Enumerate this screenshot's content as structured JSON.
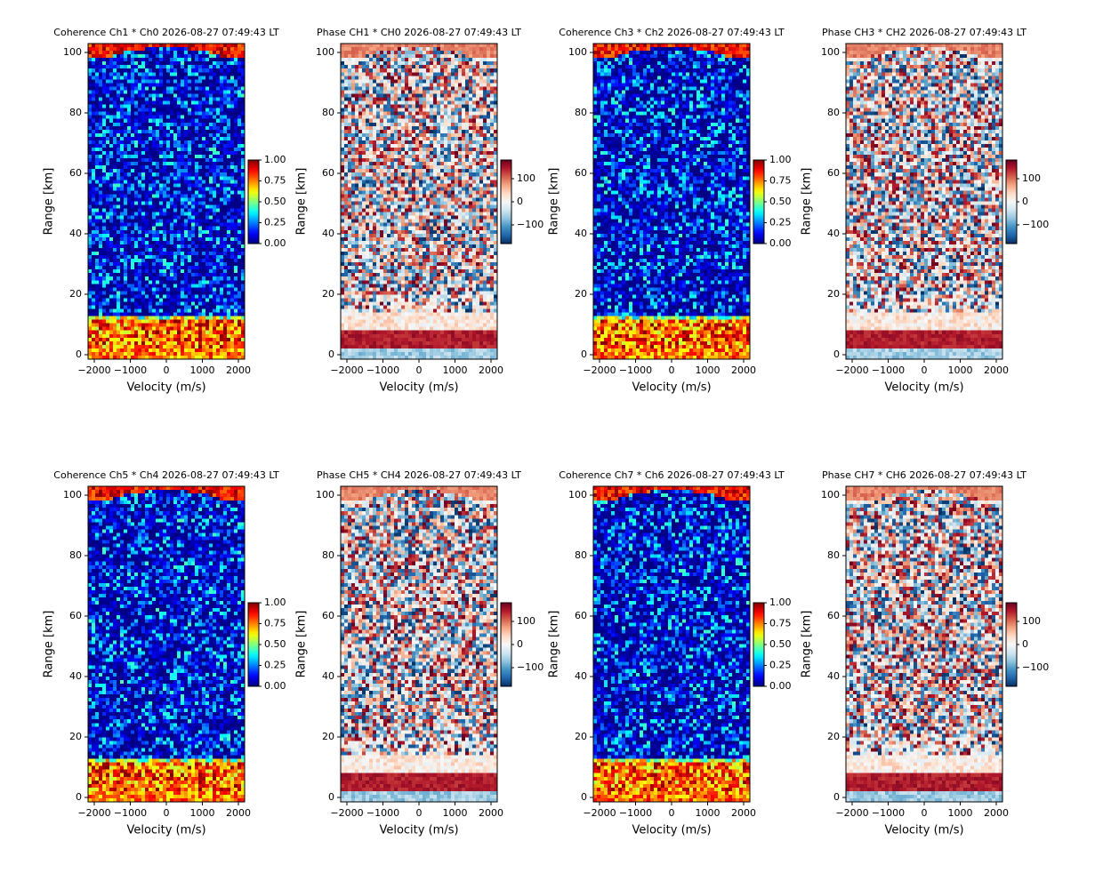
{
  "chart_data": [
    {
      "type": "heatmap",
      "title": "Coherence Ch1 * Ch0 2026-08-27 07:49:43 LT",
      "xlabel": "Velocity (m/s)",
      "ylabel": "Range [km]",
      "xlim": [
        -2173,
        2173
      ],
      "ylim": [
        -1.5,
        102.9
      ],
      "xticks": [
        {
          "value": -2000,
          "label": "−2000"
        },
        {
          "value": -1000,
          "label": "−1000"
        },
        0,
        1000,
        2000
      ],
      "yticks": [
        0,
        20,
        40,
        60,
        80,
        100
      ],
      "colormap": "jet",
      "clim": [
        0,
        1
      ],
      "cticks": [
        {
          "value": 0,
          "label": "0.00"
        },
        {
          "value": 0.25,
          "label": "0.25"
        },
        {
          "value": 0.5,
          "label": "0.50"
        },
        {
          "value": 0.75,
          "label": "0.75"
        },
        {
          "value": 1,
          "label": "1.00"
        }
      ]
    },
    {
      "type": "heatmap",
      "title": "Phase CH1 * CH0 2026-08-27 07:49:43 LT",
      "xlabel": "Velocity (m/s)",
      "ylabel": "Range [km]",
      "xlim": [
        -2173,
        2173
      ],
      "ylim": [
        -1.5,
        102.9
      ],
      "xticks": [
        {
          "value": -2000,
          "label": "−2000"
        },
        {
          "value": -1000,
          "label": "−1000"
        },
        0,
        1000,
        2000
      ],
      "yticks": [
        0,
        20,
        40,
        60,
        80,
        100
      ],
      "colormap": "RdBu_r",
      "clim": [
        -180,
        180
      ],
      "cticks": [
        {
          "value": -100,
          "label": "−100"
        },
        0,
        100
      ]
    },
    {
      "type": "heatmap",
      "title": "Coherence Ch3 * Ch2 2026-08-27 07:49:43 LT",
      "xlabel": "Velocity (m/s)",
      "ylabel": "Range [km]",
      "xlim": [
        -2173,
        2173
      ],
      "ylim": [
        -1.5,
        102.9
      ],
      "xticks": [
        {
          "value": -2000,
          "label": "−2000"
        },
        {
          "value": -1000,
          "label": "−1000"
        },
        0,
        1000,
        2000
      ],
      "yticks": [
        0,
        20,
        40,
        60,
        80,
        100
      ],
      "colormap": "jet",
      "clim": [
        0,
        1
      ],
      "cticks": [
        {
          "value": 0,
          "label": "0.00"
        },
        {
          "value": 0.25,
          "label": "0.25"
        },
        {
          "value": 0.5,
          "label": "0.50"
        },
        {
          "value": 0.75,
          "label": "0.75"
        },
        {
          "value": 1,
          "label": "1.00"
        }
      ]
    },
    {
      "type": "heatmap",
      "title": "Phase CH3 * CH2 2026-08-27 07:49:43 LT",
      "xlabel": "Velocity (m/s)",
      "ylabel": "Range [km]",
      "xlim": [
        -2173,
        2173
      ],
      "ylim": [
        -1.5,
        102.9
      ],
      "xticks": [
        {
          "value": -2000,
          "label": "−2000"
        },
        {
          "value": -1000,
          "label": "−1000"
        },
        0,
        1000,
        2000
      ],
      "yticks": [
        0,
        20,
        40,
        60,
        80,
        100
      ],
      "colormap": "RdBu_r",
      "clim": [
        -180,
        180
      ],
      "cticks": [
        {
          "value": -100,
          "label": "−100"
        },
        0,
        100
      ]
    },
    {
      "type": "heatmap",
      "title": "Coherence Ch5 * Ch4 2026-08-27 07:49:43 LT",
      "xlabel": "Velocity (m/s)",
      "ylabel": "Range [km]",
      "xlim": [
        -2173,
        2173
      ],
      "ylim": [
        -1.5,
        102.9
      ],
      "xticks": [
        {
          "value": -2000,
          "label": "−2000"
        },
        {
          "value": -1000,
          "label": "−1000"
        },
        0,
        1000,
        2000
      ],
      "yticks": [
        0,
        20,
        40,
        60,
        80,
        100
      ],
      "colormap": "jet",
      "clim": [
        0,
        1
      ],
      "cticks": [
        {
          "value": 0,
          "label": "0.00"
        },
        {
          "value": 0.25,
          "label": "0.25"
        },
        {
          "value": 0.5,
          "label": "0.50"
        },
        {
          "value": 0.75,
          "label": "0.75"
        },
        {
          "value": 1,
          "label": "1.00"
        }
      ]
    },
    {
      "type": "heatmap",
      "title": "Phase CH5 * CH4 2026-08-27 07:49:43 LT",
      "xlabel": "Velocity (m/s)",
      "ylabel": "Range [km]",
      "xlim": [
        -2173,
        2173
      ],
      "ylim": [
        -1.5,
        102.9
      ],
      "xticks": [
        {
          "value": -2000,
          "label": "−2000"
        },
        {
          "value": -1000,
          "label": "−1000"
        },
        0,
        1000,
        2000
      ],
      "yticks": [
        0,
        20,
        40,
        60,
        80,
        100
      ],
      "colormap": "RdBu_r",
      "clim": [
        -180,
        180
      ],
      "cticks": [
        {
          "value": -100,
          "label": "−100"
        },
        0,
        100
      ]
    },
    {
      "type": "heatmap",
      "title": "Coherence Ch7 * Ch6 2026-08-27 07:49:43 LT",
      "xlabel": "Velocity (m/s)",
      "ylabel": "Range [km]",
      "xlim": [
        -2173,
        2173
      ],
      "ylim": [
        -1.5,
        102.9
      ],
      "xticks": [
        {
          "value": -2000,
          "label": "−2000"
        },
        {
          "value": -1000,
          "label": "−1000"
        },
        0,
        1000,
        2000
      ],
      "yticks": [
        0,
        20,
        40,
        60,
        80,
        100
      ],
      "colormap": "jet",
      "clim": [
        0,
        1
      ],
      "cticks": [
        {
          "value": 0,
          "label": "0.00"
        },
        {
          "value": 0.25,
          "label": "0.25"
        },
        {
          "value": 0.5,
          "label": "0.50"
        },
        {
          "value": 0.75,
          "label": "0.75"
        },
        {
          "value": 1,
          "label": "1.00"
        }
      ]
    },
    {
      "type": "heatmap",
      "title": "Phase CH7 * CH6 2026-08-27 07:49:43 LT",
      "xlabel": "Velocity (m/s)",
      "ylabel": "Range [km]",
      "xlim": [
        -2173,
        2173
      ],
      "ylim": [
        -1.5,
        102.9
      ],
      "xticks": [
        {
          "value": -2000,
          "label": "−2000"
        },
        {
          "value": -1000,
          "label": "−1000"
        },
        0,
        1000,
        2000
      ],
      "yticks": [
        0,
        20,
        40,
        60,
        80,
        100
      ],
      "colormap": "RdBu_r",
      "clim": [
        -180,
        180
      ],
      "cticks": [
        {
          "value": -100,
          "label": "−100"
        },
        0,
        100
      ]
    }
  ]
}
